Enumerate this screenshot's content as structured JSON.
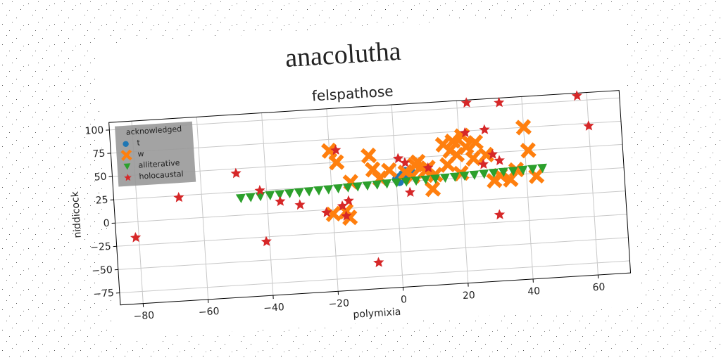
{
  "chart_data": {
    "type": "scatter",
    "title": "anacolutha",
    "subtitle": "felspathose",
    "x_label": "polymixia",
    "y_label": "niddicock",
    "xlim": [
      -87,
      70
    ],
    "ylim": [
      -88,
      108
    ],
    "xticks": [
      {
        "value": -80,
        "label": "−80"
      },
      {
        "value": -60,
        "label": "−60"
      },
      {
        "value": -40,
        "label": "−40"
      },
      {
        "value": -20,
        "label": "−20"
      },
      0,
      20,
      40,
      60
    ],
    "yticks": [
      {
        "value": -75,
        "label": "−75"
      },
      {
        "value": -50,
        "label": "−50"
      },
      {
        "value": -25,
        "label": "−25"
      },
      0,
      25,
      50,
      75,
      100
    ],
    "grid": true,
    "legend_title": "acknowledged",
    "legend_position": "upper left",
    "series": [
      {
        "name": "t",
        "color": "#1f77b4",
        "marker": "circle",
        "x": [
          0,
          1,
          2,
          3,
          4,
          5,
          1,
          3
        ],
        "values": [
          28,
          30,
          33,
          28,
          31,
          34,
          25,
          36
        ]
      },
      {
        "name": "w",
        "color": "#ff7f0e",
        "marker": "x",
        "x": [
          -20,
          -16,
          -15,
          -20,
          -18,
          -8,
          -7,
          -5,
          -14,
          3,
          5,
          7,
          9,
          12,
          16,
          17,
          18,
          19,
          21,
          22,
          24,
          25,
          20,
          30,
          32,
          35,
          37,
          40,
          41,
          43,
          28,
          11,
          10,
          6,
          -2,
          15
        ],
        "values": [
          -5,
          -3,
          -10,
          63,
          50,
          55,
          40,
          30,
          28,
          35,
          30,
          45,
          35,
          30,
          40,
          55,
          65,
          50,
          70,
          58,
          45,
          62,
          30,
          20,
          25,
          20,
          30,
          75,
          50,
          22,
          48,
          15,
          38,
          42,
          38,
          62
        ]
      },
      {
        "name": "alliterative",
        "color": "#2ca02c",
        "marker": "triangle",
        "x": [
          -48,
          -45,
          -42,
          -39,
          -36,
          -33,
          -30,
          -27,
          -24,
          -21,
          -18,
          -15,
          -12,
          -9,
          -6,
          -3,
          0,
          3,
          6,
          9,
          12,
          15,
          18,
          21,
          24,
          27,
          30,
          33,
          36,
          39,
          42,
          45
        ],
        "values": [
          18,
          18.4,
          18.8,
          19.2,
          19.5,
          19.9,
          20.3,
          20.7,
          21.1,
          21.5,
          21.9,
          22.3,
          22.6,
          23,
          23.4,
          23.8,
          24.2,
          24.6,
          25,
          25.4,
          25.7,
          26.1,
          26.5,
          26.9,
          27.3,
          27.7,
          28.1,
          28.5,
          28.8,
          29.2,
          29.6,
          30
        ]
      },
      {
        "name": "holocaustal",
        "color": "#d62728",
        "marker": "star",
        "x": [
          -81,
          -67,
          -49,
          -42,
          -41,
          -36,
          -30,
          -22,
          -17,
          -16,
          -15,
          -7,
          -18,
          1,
          3,
          4,
          10,
          23,
          22,
          28,
          27,
          30,
          31,
          32,
          33,
          57,
          60
        ],
        "values": [
          -17,
          23,
          45,
          25,
          -30,
          12,
          7,
          -3,
          3,
          -8,
          8,
          -60,
          63,
          50,
          45,
          13,
          38,
          105,
          73,
          75,
          38,
          48,
          -17,
          41,
          103,
          105,
          72
        ]
      }
    ]
  }
}
